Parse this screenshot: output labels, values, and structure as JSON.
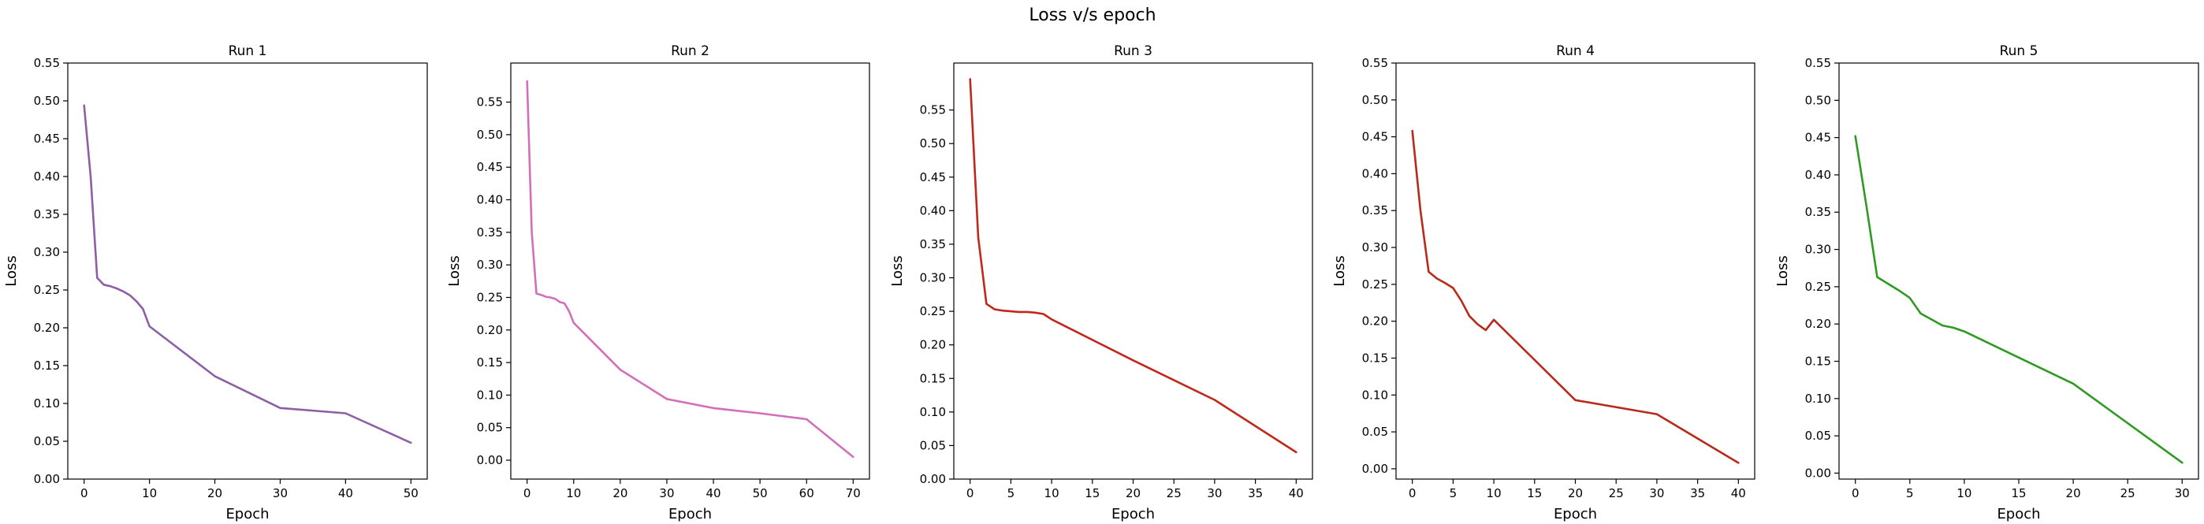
{
  "figure": {
    "title": "Loss v/s epoch"
  },
  "chart_data": [
    {
      "type": "line",
      "title": "Run 1",
      "xlabel": "Epoch",
      "ylabel": "Loss",
      "xlim": [
        -2.5,
        52.5
      ],
      "ylim": [
        0.0,
        0.55
      ],
      "xticks": [
        0,
        10,
        20,
        30,
        40,
        50
      ],
      "yticks": [
        0.0,
        0.05,
        0.1,
        0.15,
        0.2,
        0.25,
        0.3,
        0.35,
        0.4,
        0.45,
        0.5,
        0.55
      ],
      "ytick_format": 2,
      "grid": false,
      "color": "#8e5fa4",
      "x": [
        0,
        1,
        2,
        3,
        4,
        5,
        6,
        7,
        8,
        9,
        10,
        20,
        30,
        40,
        50
      ],
      "y": [
        0.494,
        0.4,
        0.266,
        0.257,
        0.255,
        0.252,
        0.248,
        0.243,
        0.235,
        0.225,
        0.202,
        0.136,
        0.094,
        0.087,
        0.048
      ]
    },
    {
      "type": "line",
      "title": "Run 2",
      "xlabel": "Epoch",
      "ylabel": "Loss",
      "xlim": [
        -3.5,
        73.5
      ],
      "ylim": [
        -0.029,
        0.61
      ],
      "xticks": [
        0,
        10,
        20,
        30,
        40,
        50,
        60,
        70
      ],
      "yticks": [
        0.0,
        0.05,
        0.1,
        0.15,
        0.2,
        0.25,
        0.3,
        0.35,
        0.4,
        0.45,
        0.5,
        0.55
      ],
      "ytick_format": 2,
      "grid": false,
      "color": "#d36fb8",
      "x": [
        0,
        1,
        2,
        3,
        4,
        5,
        6,
        7,
        8,
        9,
        10,
        20,
        30,
        40,
        50,
        60,
        70
      ],
      "y": [
        0.582,
        0.35,
        0.256,
        0.254,
        0.251,
        0.25,
        0.248,
        0.243,
        0.241,
        0.229,
        0.211,
        0.139,
        0.094,
        0.08,
        0.072,
        0.063,
        0.005
      ]
    },
    {
      "type": "line",
      "title": "Run 3",
      "xlabel": "Epoch",
      "ylabel": "Loss",
      "xlim": [
        -2.0,
        42.0
      ],
      "ylim": [
        0.0,
        0.62
      ],
      "xticks": [
        0,
        5,
        10,
        15,
        20,
        25,
        30,
        35,
        40
      ],
      "yticks": [
        0.0,
        0.05,
        0.1,
        0.15,
        0.2,
        0.25,
        0.3,
        0.35,
        0.4,
        0.45,
        0.5,
        0.55
      ],
      "ytick_format": 2,
      "grid": false,
      "color": "#c0281b",
      "x": [
        0,
        1,
        2,
        3,
        4,
        5,
        6,
        7,
        8,
        9,
        10,
        20,
        30,
        40
      ],
      "y": [
        0.596,
        0.36,
        0.261,
        0.253,
        0.251,
        0.25,
        0.249,
        0.249,
        0.248,
        0.246,
        0.238,
        0.177,
        0.118,
        0.04
      ]
    },
    {
      "type": "line",
      "title": "Run 4",
      "xlabel": "Epoch",
      "ylabel": "Loss",
      "xlim": [
        -2.0,
        42.0
      ],
      "ylim": [
        -0.014,
        0.55
      ],
      "xticks": [
        0,
        5,
        10,
        15,
        20,
        25,
        30,
        35,
        40
      ],
      "yticks": [
        0.0,
        0.05,
        0.1,
        0.15,
        0.2,
        0.25,
        0.3,
        0.35,
        0.4,
        0.45,
        0.5,
        0.55
      ],
      "ytick_format": 2,
      "grid": false,
      "color": "#b82a1c",
      "x": [
        0,
        1,
        2,
        3,
        4,
        5,
        6,
        7,
        8,
        9,
        10,
        20,
        30,
        40
      ],
      "y": [
        0.458,
        0.35,
        0.267,
        0.258,
        0.252,
        0.245,
        0.228,
        0.207,
        0.196,
        0.188,
        0.202,
        0.093,
        0.074,
        0.008
      ]
    },
    {
      "type": "line",
      "title": "Run 5",
      "xlabel": "Epoch",
      "ylabel": "Loss",
      "xlim": [
        -1.5,
        31.5
      ],
      "ylim": [
        -0.008,
        0.55
      ],
      "xticks": [
        0,
        5,
        10,
        15,
        20,
        25,
        30
      ],
      "yticks": [
        0.0,
        0.05,
        0.1,
        0.15,
        0.2,
        0.25,
        0.3,
        0.35,
        0.4,
        0.45,
        0.5,
        0.55
      ],
      "ytick_format": 2,
      "grid": false,
      "color": "#2f9a22",
      "x": [
        0,
        1,
        2,
        3,
        4,
        5,
        6,
        7,
        8,
        9,
        10,
        20,
        30
      ],
      "y": [
        0.452,
        0.36,
        0.263,
        0.254,
        0.245,
        0.235,
        0.214,
        0.206,
        0.198,
        0.195,
        0.19,
        0.12,
        0.014
      ]
    }
  ]
}
